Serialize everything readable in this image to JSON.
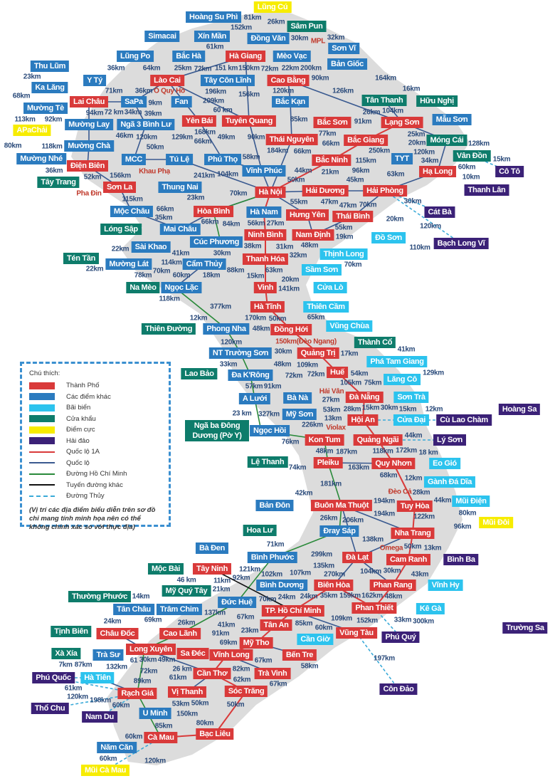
{
  "colors": {
    "city": "#d93a3a",
    "other": "#2b7bbf",
    "beach": "#2cc3ee",
    "border": "#0e7c6b",
    "extreme": "#f7ec00",
    "island": "#3b2177",
    "ql1a": "#d93a3a",
    "ql": "#3a5a90",
    "hcm": "#2a8a3a",
    "other_road": "#111111",
    "water": "#3aaad8",
    "land": "#dcdcdc"
  },
  "legend": {
    "title": "Chú thích:",
    "items": [
      {
        "label": "Thành Phố",
        "kind": "swatch",
        "type": "city"
      },
      {
        "label": "Các điểm khác",
        "kind": "swatch",
        "type": "other"
      },
      {
        "label": "Bãi biển",
        "kind": "swatch",
        "type": "beach"
      },
      {
        "label": "Cửa khẩu",
        "kind": "swatch",
        "type": "border"
      },
      {
        "label": "Điểm cực",
        "kind": "swatch",
        "type": "extreme"
      },
      {
        "label": "Hải đảo",
        "kind": "swatch",
        "type": "island"
      },
      {
        "label": "Quốc lộ 1A",
        "kind": "line",
        "type": "ql1a"
      },
      {
        "label": "Quốc lộ",
        "kind": "line",
        "type": "ql"
      },
      {
        "label": "Đường Hồ Chí Minh",
        "kind": "line",
        "type": "hcm"
      },
      {
        "label": "Tuyến đường khác",
        "kind": "line",
        "type": "other_road"
      },
      {
        "label": "Đường Thủy",
        "kind": "dash",
        "type": "water"
      }
    ],
    "note": "(Vị trí các địa điểm biểu diễn trên sơ đồ chỉ mang tính minh họa nên có thể không chính xác so với thực địa)"
  },
  "nodes": [
    {
      "name": "Lũng Cú",
      "type": "extreme"
    },
    {
      "name": "Hoàng Su Phì",
      "type": "other"
    },
    {
      "name": "Sâm Pun",
      "type": "border"
    },
    {
      "name": "Simacai",
      "type": "other"
    },
    {
      "name": "Xín Mần",
      "type": "other"
    },
    {
      "name": "Đồng Văn",
      "type": "other"
    },
    {
      "name": "Hà Giang",
      "type": "city"
    },
    {
      "name": "Bắc Hà",
      "type": "other"
    },
    {
      "name": "Lũng Po",
      "type": "other"
    },
    {
      "name": "Mèo Vạc",
      "type": "other"
    },
    {
      "name": "Sơn Vĩ",
      "type": "other"
    },
    {
      "name": "Thu Lũm",
      "type": "other"
    },
    {
      "name": "Bản Giốc",
      "type": "other"
    },
    {
      "name": "Y Tý",
      "type": "other"
    },
    {
      "name": "Lào Cai",
      "type": "city"
    },
    {
      "name": "Tây Côn Lĩnh",
      "type": "other"
    },
    {
      "name": "Cao Bằng",
      "type": "city"
    },
    {
      "name": "Ka Lăng",
      "type": "other"
    },
    {
      "name": "Lai Châu",
      "type": "city"
    },
    {
      "name": "SaPa",
      "type": "other"
    },
    {
      "name": "Fan",
      "type": "other"
    },
    {
      "name": "Tân Thanh",
      "type": "border"
    },
    {
      "name": "Hữu Nghị",
      "type": "border"
    },
    {
      "name": "Mường Tè",
      "type": "other"
    },
    {
      "name": "Bắc Kạn",
      "type": "other"
    },
    {
      "name": "Mường Lay",
      "type": "other"
    },
    {
      "name": "Ngã 3 Bình Lư",
      "type": "other"
    },
    {
      "name": "Yên Bái",
      "type": "city"
    },
    {
      "name": "Tuyên Quang",
      "type": "city"
    },
    {
      "name": "Bắc Sơn",
      "type": "city"
    },
    {
      "name": "Lạng Sơn",
      "type": "city"
    },
    {
      "name": "Mẫu Sơn",
      "type": "other"
    },
    {
      "name": "APaChải",
      "type": "extreme"
    },
    {
      "name": "Thái Nguyên",
      "type": "city"
    },
    {
      "name": "Bắc Giang",
      "type": "city"
    },
    {
      "name": "Móng Cái",
      "type": "border"
    },
    {
      "name": "Mường Chà",
      "type": "other"
    },
    {
      "name": "Mường Nhé",
      "type": "other"
    },
    {
      "name": "MCC",
      "type": "other"
    },
    {
      "name": "Tú Lệ",
      "type": "other"
    },
    {
      "name": "Phú Thọ",
      "type": "other"
    },
    {
      "name": "Vĩnh Phúc",
      "type": "other"
    },
    {
      "name": "TYT",
      "type": "other"
    },
    {
      "name": "Vân Đồn",
      "type": "border"
    },
    {
      "name": "Hạ Long",
      "type": "city"
    },
    {
      "name": "Cô Tô",
      "type": "island"
    },
    {
      "name": "Điện Biên",
      "type": "city"
    },
    {
      "name": "Tây Trang",
      "type": "border"
    },
    {
      "name": "Sơn La",
      "type": "city"
    },
    {
      "name": "Thung Nai",
      "type": "other"
    },
    {
      "name": "Hà Nội",
      "type": "city"
    },
    {
      "name": "Bắc Ninh",
      "type": "city"
    },
    {
      "name": "Hải Dương",
      "type": "city"
    },
    {
      "name": "Hải Phòng",
      "type": "city"
    },
    {
      "name": "Thanh Lân",
      "type": "island"
    },
    {
      "name": "Mộc Châu",
      "type": "other"
    },
    {
      "name": "Hòa Bình",
      "type": "city"
    },
    {
      "name": "Hà Nam",
      "type": "other"
    },
    {
      "name": "Hưng Yên",
      "type": "city"
    },
    {
      "name": "Thái Bình",
      "type": "city"
    },
    {
      "name": "Cát Bà",
      "type": "island"
    },
    {
      "name": "Lóng Sập",
      "type": "border"
    },
    {
      "name": "Mai Châu",
      "type": "other"
    },
    {
      "name": "Ninh Bình",
      "type": "city"
    },
    {
      "name": "Nam Định",
      "type": "city"
    },
    {
      "name": "Đồ Sơn",
      "type": "beach"
    },
    {
      "name": "Bạch Long Vĩ",
      "type": "island"
    },
    {
      "name": "Sài Khao",
      "type": "other"
    },
    {
      "name": "Cúc Phương",
      "type": "other"
    },
    {
      "name": "Thịnh Long",
      "type": "beach"
    },
    {
      "name": "Tén Tần",
      "type": "border"
    },
    {
      "name": "Mường Lát",
      "type": "other"
    },
    {
      "name": "Cẩm Thủy",
      "type": "other"
    },
    {
      "name": "Thanh Hóa",
      "type": "city"
    },
    {
      "name": "Sầm Sơn",
      "type": "beach"
    },
    {
      "name": "Na Mèo",
      "type": "border"
    },
    {
      "name": "Ngọc Lặc",
      "type": "other"
    },
    {
      "name": "Vinh",
      "type": "city"
    },
    {
      "name": "Cửa Lò",
      "type": "beach"
    },
    {
      "name": "Hà Tĩnh",
      "type": "city"
    },
    {
      "name": "Thiên Cầm",
      "type": "beach"
    },
    {
      "name": "Thiên Đường",
      "type": "border"
    },
    {
      "name": "Phong Nha",
      "type": "other"
    },
    {
      "name": "Đồng Hới",
      "type": "city"
    },
    {
      "name": "Vũng Chùa",
      "type": "beach"
    },
    {
      "name": "Thành Cổ",
      "type": "border"
    },
    {
      "name": "NT Trường Sơn",
      "type": "other"
    },
    {
      "name": "Quảng Trị",
      "type": "city"
    },
    {
      "name": "Phá Tam Giang",
      "type": "beach"
    },
    {
      "name": "Lao Bảo",
      "type": "border"
    },
    {
      "name": "Đa K'Rông",
      "type": "other"
    },
    {
      "name": "Huế",
      "type": "city"
    },
    {
      "name": "Lăng Cô",
      "type": "beach"
    },
    {
      "name": "A Lưới",
      "type": "other"
    },
    {
      "name": "Bà Nà",
      "type": "other"
    },
    {
      "name": "Đà Nẵng",
      "type": "city"
    },
    {
      "name": "Sơn Trà",
      "type": "beach"
    },
    {
      "name": "Mỹ Sơn",
      "type": "other"
    },
    {
      "name": "Hoàng Sa",
      "type": "island"
    },
    {
      "name": "Ngã ba Đông Dương (Pờ Y)",
      "type": "border"
    },
    {
      "name": "Ngọc Hồi",
      "type": "other"
    },
    {
      "name": "Hội An",
      "type": "city"
    },
    {
      "name": "Cửa Đại",
      "type": "beach"
    },
    {
      "name": "Cù Lao Chàm",
      "type": "island"
    },
    {
      "name": "Kon Tum",
      "type": "city"
    },
    {
      "name": "Quảng Ngãi",
      "type": "city"
    },
    {
      "name": "Lý Sơn",
      "type": "island"
    },
    {
      "name": "Lệ Thanh",
      "type": "border"
    },
    {
      "name": "Pleiku",
      "type": "city"
    },
    {
      "name": "Quy Nhơn",
      "type": "city"
    },
    {
      "name": "Eo Gió",
      "type": "beach"
    },
    {
      "name": "Gành Đá Dĩa",
      "type": "beach"
    },
    {
      "name": "Tuy Hòa",
      "type": "city"
    },
    {
      "name": "Mũi Điện",
      "type": "beach"
    },
    {
      "name": "Bản Đôn",
      "type": "other"
    },
    {
      "name": "Buôn Ma Thuột",
      "type": "city"
    },
    {
      "name": "Mũi Đôi",
      "type": "extreme"
    },
    {
      "name": "Đray Sáp",
      "type": "other"
    },
    {
      "name": "Nha Trang",
      "type": "city"
    },
    {
      "name": "Hoa Lư",
      "type": "border"
    },
    {
      "name": "Bà Đen",
      "type": "other"
    },
    {
      "name": "Bình Phước",
      "type": "other"
    },
    {
      "name": "Đà Lạt",
      "type": "city"
    },
    {
      "name": "Cam Ranh",
      "type": "city"
    },
    {
      "name": "Bình Ba",
      "type": "island"
    },
    {
      "name": "Mộc Bài",
      "type": "border"
    },
    {
      "name": "Tây Ninh",
      "type": "city"
    },
    {
      "name": "Mỹ Quý Tây",
      "type": "border"
    },
    {
      "name": "Bình Dương",
      "type": "other"
    },
    {
      "name": "Biên Hòa",
      "type": "city"
    },
    {
      "name": "Phan Rang",
      "type": "city"
    },
    {
      "name": "Vĩnh Hy",
      "type": "beach"
    },
    {
      "name": "Thường Phước",
      "type": "border"
    },
    {
      "name": "Đức Huệ",
      "type": "other"
    },
    {
      "name": "Tân Châu",
      "type": "other"
    },
    {
      "name": "Trâm Chim",
      "type": "other"
    },
    {
      "name": "TP. Hồ Chí Minh",
      "type": "city"
    },
    {
      "name": "Phan Thiết",
      "type": "city"
    },
    {
      "name": "Kê Gà",
      "type": "beach"
    },
    {
      "name": "Châu Đốc",
      "type": "city"
    },
    {
      "name": "Cao Lãnh",
      "type": "city"
    },
    {
      "name": "Tân An",
      "type": "city"
    },
    {
      "name": "Vũng Tàu",
      "type": "city"
    },
    {
      "name": "Phú Quý",
      "type": "island"
    },
    {
      "name": "Trường Sa",
      "type": "island"
    },
    {
      "name": "Tịnh Biên",
      "type": "border"
    },
    {
      "name": "Mỹ Tho",
      "type": "city"
    },
    {
      "name": "Cần Giờ",
      "type": "beach"
    },
    {
      "name": "Trà Sư",
      "type": "other"
    },
    {
      "name": "Xà Xía",
      "type": "border"
    },
    {
      "name": "Long Xuyên",
      "type": "city"
    },
    {
      "name": "Sa Đéc",
      "type": "city"
    },
    {
      "name": "Vĩnh Long",
      "type": "city"
    },
    {
      "name": "Bến Tre",
      "type": "city"
    },
    {
      "name": "Phú Quốc",
      "type": "island"
    },
    {
      "name": "Hà Tiên",
      "type": "beach"
    },
    {
      "name": "Cần Thơ",
      "type": "city"
    },
    {
      "name": "Trà Vinh",
      "type": "city"
    },
    {
      "name": "Rạch Giá",
      "type": "city"
    },
    {
      "name": "Vị Thanh",
      "type": "city"
    },
    {
      "name": "Sóc Trăng",
      "type": "city"
    },
    {
      "name": "Côn Đảo",
      "type": "island"
    },
    {
      "name": "Thổ Chu",
      "type": "island"
    },
    {
      "name": "Nam Du",
      "type": "island"
    },
    {
      "name": "U Minh",
      "type": "other"
    },
    {
      "name": "Bạc Liêu",
      "type": "city"
    },
    {
      "name": "Cà Mau",
      "type": "city"
    },
    {
      "name": "Năm Căn",
      "type": "other"
    },
    {
      "name": "Mũi Cà Mau",
      "type": "extreme"
    }
  ],
  "distances": [
    "26km",
    "30km",
    "MPL",
    "22km",
    "32km",
    "152km",
    "81km",
    "25km",
    "61km",
    "150km",
    "151 km",
    "200km",
    "90km",
    "164km",
    "36km",
    "64km",
    "72km",
    "196km",
    "72km",
    "23km",
    "126km",
    "68km",
    "71km",
    "72 km",
    "36km",
    "Ô Quy Hồ",
    "9km",
    "209km",
    "168km",
    "156km",
    "120km",
    "85km",
    "26km",
    "16km",
    "25km",
    "113km",
    "92km",
    "94km",
    "34km",
    "39km",
    "60 km",
    "91km",
    "104km",
    "20km",
    "46km",
    "120km",
    "129km",
    "66km",
    "49km",
    "90km",
    "184km",
    "77km",
    "66km",
    "250km",
    "120km",
    "128km",
    "80km",
    "118km",
    "52km",
    "50km",
    "Khau Phạ",
    "58km",
    "66km",
    "21km",
    "115km",
    "96km",
    "34km",
    "60km",
    "15km",
    "10km",
    "36km",
    "156km",
    "Pha Đin",
    "104km",
    "241km",
    "50km",
    "44km",
    "47km",
    "63km",
    "70km",
    "55km",
    "45km",
    "115km",
    "23km",
    "35km",
    "66km",
    "66km",
    "84km",
    "27km",
    "47km",
    "56km",
    "55km",
    "70km",
    "30km",
    "20km",
    "120km",
    "110km",
    "38km",
    "31km",
    "48km",
    "19km",
    "22km",
    "41km",
    "114km",
    "32km",
    "63km",
    "70km",
    "22km",
    "70km",
    "60km",
    "30km",
    "88km",
    "20km",
    "78km",
    "18km",
    "141km",
    "118km",
    "15km",
    "50km",
    "377km",
    "150km(Đèo Ngang)",
    "12km",
    "48km",
    "170km",
    "65km",
    "17km",
    "41km",
    "120km",
    "30km",
    "109km",
    "54km",
    "129km",
    "75km",
    "57km",
    "48km",
    "72km",
    "72km",
    "33km",
    "91km",
    "105km",
    "Hải Vân",
    "30km",
    "27km",
    "15km",
    "327km",
    "53km",
    "28km",
    "13km",
    "226km",
    "23 km",
    "15km",
    "12km",
    "76km",
    "Violax",
    "187km",
    "118km",
    "44km",
    "48km",
    "172km",
    "18 km",
    "74km",
    "163km",
    "68km",
    "12km",
    "181km",
    "28km",
    "122km",
    "44km",
    "42km",
    "194km",
    "Đèo Cả",
    "80km",
    "96km",
    "26km",
    "194km",
    "206km",
    "138km",
    "Omega",
    "50km",
    "71km",
    "11km",
    "121km",
    "46 km",
    "299km",
    "30km",
    "13km",
    "270km",
    "135km",
    "107km",
    "104km",
    "24km",
    "92km",
    "102km",
    "21km",
    "14km",
    "24km",
    "69km",
    "26km",
    "137km",
    "67km",
    "24km",
    "35km",
    "159km",
    "162km",
    "43km",
    "48km",
    "109km",
    "33km",
    "152km",
    "300km",
    "70km",
    "23km",
    "91km",
    "69km",
    "85km",
    "60km",
    "87km",
    "7km",
    "132km",
    "61",
    "30km",
    "49km",
    "26 km",
    "41km",
    "67km",
    "82km",
    "58km",
    "197km",
    "61km",
    "120km",
    "89km",
    "61km",
    "72km",
    "53km",
    "50km",
    "62km",
    "67km",
    "198km",
    "60km",
    "50km",
    "150km",
    "85km",
    "80km",
    "60km",
    "60km",
    "120km"
  ]
}
